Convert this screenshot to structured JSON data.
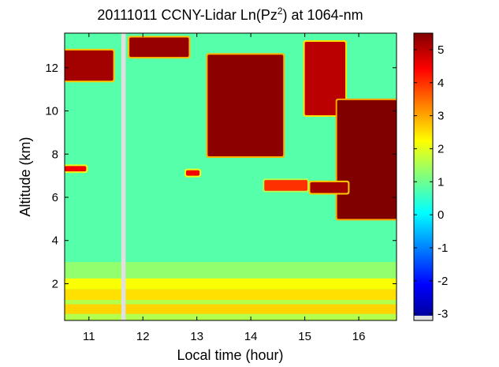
{
  "chart_data": {
    "type": "heatmap",
    "title": "20111011 CCNY-Lidar Ln(Pz",
    "title_sup": "2",
    "title_suffix": ") at 1064-nm",
    "xlabel": "Local time (hour)",
    "ylabel": "Altitude (km)",
    "xlim": [
      10.55,
      16.7
    ],
    "ylim": [
      0.3,
      13.6
    ],
    "x_ticks": [
      11,
      12,
      13,
      14,
      15,
      16
    ],
    "x_tick_labels": [
      "11",
      "12",
      "13",
      "14",
      "15",
      "16"
    ],
    "y_ticks": [
      2,
      4,
      6,
      8,
      10,
      12
    ],
    "y_tick_labels": [
      "2",
      "4",
      "6",
      "8",
      "10",
      "12"
    ],
    "colorbar": {
      "range": [
        -3.2,
        5.5
      ],
      "ticks": [
        -3,
        -2,
        -1,
        0,
        1,
        2,
        3,
        4,
        5
      ],
      "tick_labels": [
        "-3",
        "-2",
        "-1",
        "0",
        "1",
        "2",
        "3",
        "4",
        "5"
      ],
      "colormap": "jet"
    },
    "data_gap": {
      "x_range": [
        11.6,
        11.68
      ],
      "color": "#e0e0e0"
    },
    "background_value": 0.8,
    "boundary_layer": [
      {
        "y_range": [
          0.3,
          0.6
        ],
        "value": 1.6
      },
      {
        "y_range": [
          0.6,
          1.05
        ],
        "value": 2.6
      },
      {
        "y_range": [
          1.05,
          1.25
        ],
        "value": 1.6
      },
      {
        "y_range": [
          1.25,
          1.75
        ],
        "value": 2.5
      },
      {
        "y_range": [
          1.75,
          2.25
        ],
        "value": 2.2
      },
      {
        "y_range": [
          2.25,
          3.0
        ],
        "value": 1.3
      }
    ],
    "cloud_regions": [
      {
        "x": [
          10.55,
          11.45
        ],
        "y_top": 12.8,
        "y_bottom": 11.4,
        "value": 5.2
      },
      {
        "x": [
          11.75,
          12.85
        ],
        "y_top": 13.4,
        "y_bottom": 12.5,
        "value": 5.3
      },
      {
        "x": [
          13.2,
          14.6
        ],
        "y_top": 12.6,
        "y_bottom": 7.9,
        "value": 5.4
      },
      {
        "x": [
          15.0,
          15.75
        ],
        "y_top": 13.2,
        "y_bottom": 9.8,
        "value": 5.0
      },
      {
        "x": [
          15.6,
          16.7
        ],
        "y_top": 10.5,
        "y_bottom": 5.0,
        "value": 5.5
      },
      {
        "x": [
          10.55,
          10.95
        ],
        "y_top": 7.45,
        "y_bottom": 7.2,
        "value": 4.5
      },
      {
        "x": [
          12.8,
          13.05
        ],
        "y_top": 7.25,
        "y_bottom": 7.0,
        "value": 4.5
      },
      {
        "x": [
          14.25,
          15.05
        ],
        "y_top": 6.8,
        "y_bottom": 6.3,
        "value": 4.0
      },
      {
        "x": [
          15.1,
          15.8
        ],
        "y_top": 6.7,
        "y_bottom": 6.2,
        "value": 5.2
      }
    ]
  }
}
